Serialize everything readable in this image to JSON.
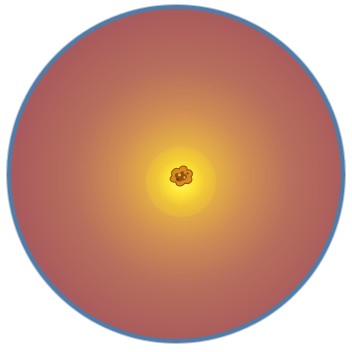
{
  "image": {
    "type": "petri-dish",
    "colors": {
      "rim": "#4f7ca8",
      "medium_edge": "#9c4f5a",
      "medium_mid": "#b86f5c",
      "glow_center": "#fff15a",
      "specimen": "#c7791c"
    }
  }
}
